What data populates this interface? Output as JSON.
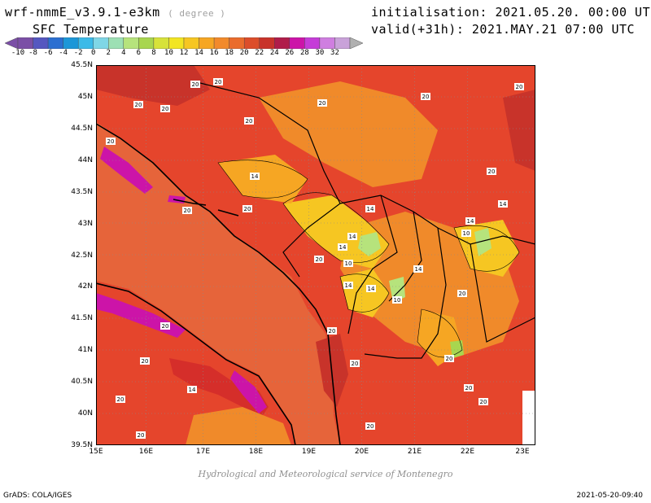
{
  "header": {
    "model": "wrf-nmmE_v3.9.1-e3km",
    "unit": "( degree )",
    "variable": "SFC Temperature",
    "initialisation": "initialisation: 2021.05.20. 00:00 UTC",
    "valid": "valid(+31h): 2021.MAY.21 07:00 UTC"
  },
  "colorbar": {
    "labels": [
      "-10",
      "-8",
      "-6",
      "-4",
      "-2",
      "0",
      "2",
      "4",
      "6",
      "8",
      "10",
      "12",
      "14",
      "16",
      "18",
      "20",
      "22",
      "24",
      "26",
      "28",
      "30",
      "32"
    ],
    "colors": [
      "#7b4fa6",
      "#5557c0",
      "#2b6fd1",
      "#1c97d8",
      "#3bbae8",
      "#7fd6e6",
      "#9de0b4",
      "#b6e37c",
      "#a8d64f",
      "#d7e23a",
      "#f2e522",
      "#f6c622",
      "#f6a623",
      "#f28a2b",
      "#ea6c2c",
      "#dc4d2a",
      "#c8332a",
      "#b01c4a",
      "#cc14a8",
      "#c53cd8",
      "#cf7ee0",
      "#c9a2d9"
    ]
  },
  "map": {
    "lat_labels": [
      "45.5N",
      "45N",
      "44.5N",
      "44N",
      "43.5N",
      "43N",
      "42.5N",
      "42N",
      "41.5N",
      "41N",
      "40.5N",
      "40N",
      "39.5N"
    ],
    "lon_labels": [
      "15E",
      "16E",
      "17E",
      "18E",
      "19E",
      "20E",
      "21E",
      "22E",
      "23E"
    ],
    "contour_labels": [
      {
        "t": "20"
      },
      {
        "t": "20"
      },
      {
        "t": "20"
      },
      {
        "t": "20"
      },
      {
        "t": "20"
      },
      {
        "t": "20"
      },
      {
        "t": "20"
      },
      {
        "t": "20"
      },
      {
        "t": "20"
      },
      {
        "t": "14"
      },
      {
        "t": "14"
      },
      {
        "t": "20"
      },
      {
        "t": "14"
      },
      {
        "t": "14"
      },
      {
        "t": "10"
      },
      {
        "t": "14"
      },
      {
        "t": "14"
      },
      {
        "t": "10"
      },
      {
        "t": "14"
      },
      {
        "t": "14"
      },
      {
        "t": "10"
      },
      {
        "t": "14"
      },
      {
        "t": "20"
      },
      {
        "t": "20"
      },
      {
        "t": "20"
      },
      {
        "t": "20"
      },
      {
        "t": "20"
      },
      {
        "t": "20"
      },
      {
        "t": "20"
      },
      {
        "t": "14"
      },
      {
        "t": "20"
      },
      {
        "t": "20"
      },
      {
        "t": "20"
      },
      {
        "t": "20"
      },
      {
        "t": "20"
      },
      {
        "t": "20"
      },
      {
        "t": "20"
      }
    ]
  },
  "footer": {
    "credit": "Hydrological and Meteorological service of Montenegro",
    "software": "GrADS: COLA/IGES",
    "timestamp": "2021-05-20-09:40"
  }
}
